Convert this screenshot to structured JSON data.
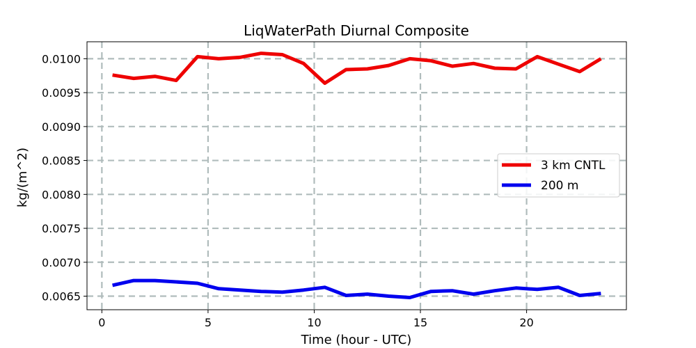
{
  "chart_data": {
    "type": "line",
    "title": "LiqWaterPath Diurnal Composite",
    "xlabel": "Time (hour - UTC)",
    "ylabel": "kg/(m^2)",
    "xlim": [
      -0.7,
      24.7
    ],
    "ylim": [
      0.0063,
      0.01025
    ],
    "xticks": [
      0,
      5,
      10,
      15,
      20
    ],
    "xtick_labels": [
      "0",
      "5",
      "10",
      "15",
      "20"
    ],
    "yticks": [
      0.0065,
      0.007,
      0.0075,
      0.008,
      0.0085,
      0.009,
      0.0095,
      0.01
    ],
    "ytick_labels": [
      "0.0065",
      "0.0070",
      "0.0075",
      "0.0080",
      "0.0085",
      "0.0090",
      "0.0095",
      "0.0100"
    ],
    "grid": true,
    "legend_position": "center-right",
    "x": [
      0.5,
      1.5,
      2.5,
      3.5,
      4.5,
      5.5,
      6.5,
      7.5,
      8.5,
      9.5,
      10.5,
      11.5,
      12.5,
      13.5,
      14.5,
      15.5,
      16.5,
      17.5,
      18.5,
      19.5,
      20.5,
      21.5,
      22.5,
      23.5
    ],
    "series": [
      {
        "name": "3 km CNTL",
        "color": "#ee0000",
        "values": [
          0.00976,
          0.00971,
          0.00974,
          0.00968,
          0.01003,
          0.01,
          0.01002,
          0.01008,
          0.01006,
          0.00993,
          0.00964,
          0.00984,
          0.00985,
          0.0099,
          0.01,
          0.00997,
          0.00989,
          0.00993,
          0.00986,
          0.00985,
          0.01003,
          0.00992,
          0.00981,
          0.01
        ]
      },
      {
        "name": "200 m",
        "color": "#0000ee",
        "values": [
          0.00666,
          0.00673,
          0.00673,
          0.00671,
          0.00669,
          0.00661,
          0.00659,
          0.00657,
          0.00656,
          0.00659,
          0.00663,
          0.00651,
          0.00653,
          0.0065,
          0.00648,
          0.00657,
          0.00658,
          0.00653,
          0.00658,
          0.00662,
          0.0066,
          0.00663,
          0.00651,
          0.00654
        ]
      }
    ]
  }
}
